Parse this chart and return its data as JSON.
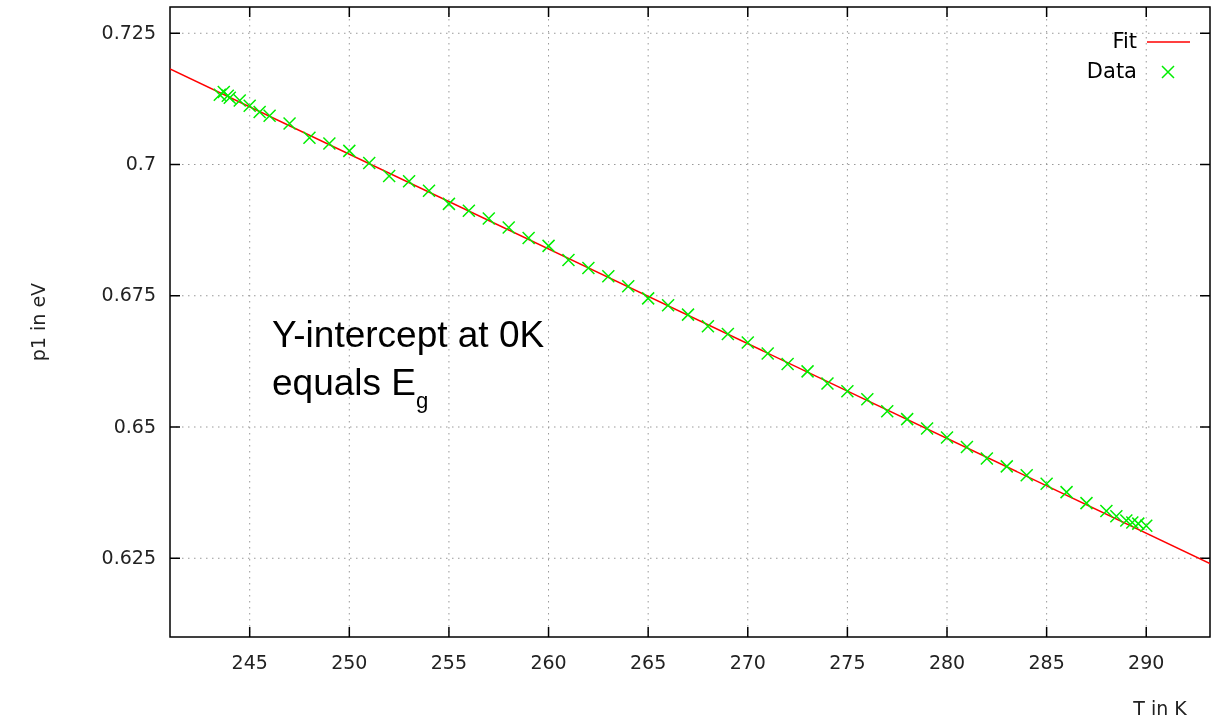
{
  "chart_data": {
    "type": "scatter",
    "xlabel": "T in K",
    "ylabel": "p1 in eV",
    "xlim": [
      241,
      293.2
    ],
    "ylim": [
      0.61,
      0.73
    ],
    "xticks": [
      245,
      250,
      255,
      260,
      265,
      270,
      275,
      280,
      285,
      290
    ],
    "yticks": [
      0.625,
      0.65,
      0.675,
      0.7,
      0.725
    ],
    "grid": true,
    "legend": "top right",
    "annotations": [
      "Y-intercept at 0K\nequals E$_{g}$"
    ],
    "series": [
      {
        "name": "Fit",
        "type": "line",
        "color": "#ff0000",
        "line_style": "solid",
        "marker": "none",
        "x": [
          241,
          293.2
        ],
        "values": [
          0.7182,
          0.624
        ]
      },
      {
        "name": "Data",
        "type": "scatter",
        "color": "#00ee00",
        "marker": "cross",
        "x": [
          243.5,
          243.7,
          243.9,
          244,
          244.5,
          245,
          245.5,
          246,
          247,
          248,
          249,
          250,
          251,
          252,
          253,
          254,
          255,
          256,
          257,
          258,
          259,
          260,
          261,
          262,
          263,
          264,
          265,
          266,
          267,
          268,
          269,
          270,
          271,
          272,
          273,
          274,
          275,
          276,
          277,
          278,
          279,
          280,
          281,
          282,
          283,
          284,
          285,
          286,
          287,
          288,
          288.5,
          289,
          289.3,
          289.6,
          290
        ],
        "values": [
          0.7133,
          0.7138,
          0.7131,
          0.7127,
          0.7122,
          0.7112,
          0.71,
          0.7093,
          0.7078,
          0.7051,
          0.704,
          0.7026,
          0.7003,
          0.6978,
          0.6968,
          0.695,
          0.6925,
          0.6912,
          0.6897,
          0.688,
          0.686,
          0.6845,
          0.6818,
          0.6803,
          0.6787,
          0.6768,
          0.6745,
          0.6732,
          0.6714,
          0.6692,
          0.6677,
          0.6661,
          0.664,
          0.662,
          0.6606,
          0.6583,
          0.6568,
          0.6553,
          0.653,
          0.6515,
          0.6497,
          0.648,
          0.6462,
          0.644,
          0.6425,
          0.6408,
          0.6392,
          0.6376,
          0.6355,
          0.634,
          0.633,
          0.6322,
          0.6318,
          0.6316,
          0.6312
        ]
      }
    ]
  }
}
